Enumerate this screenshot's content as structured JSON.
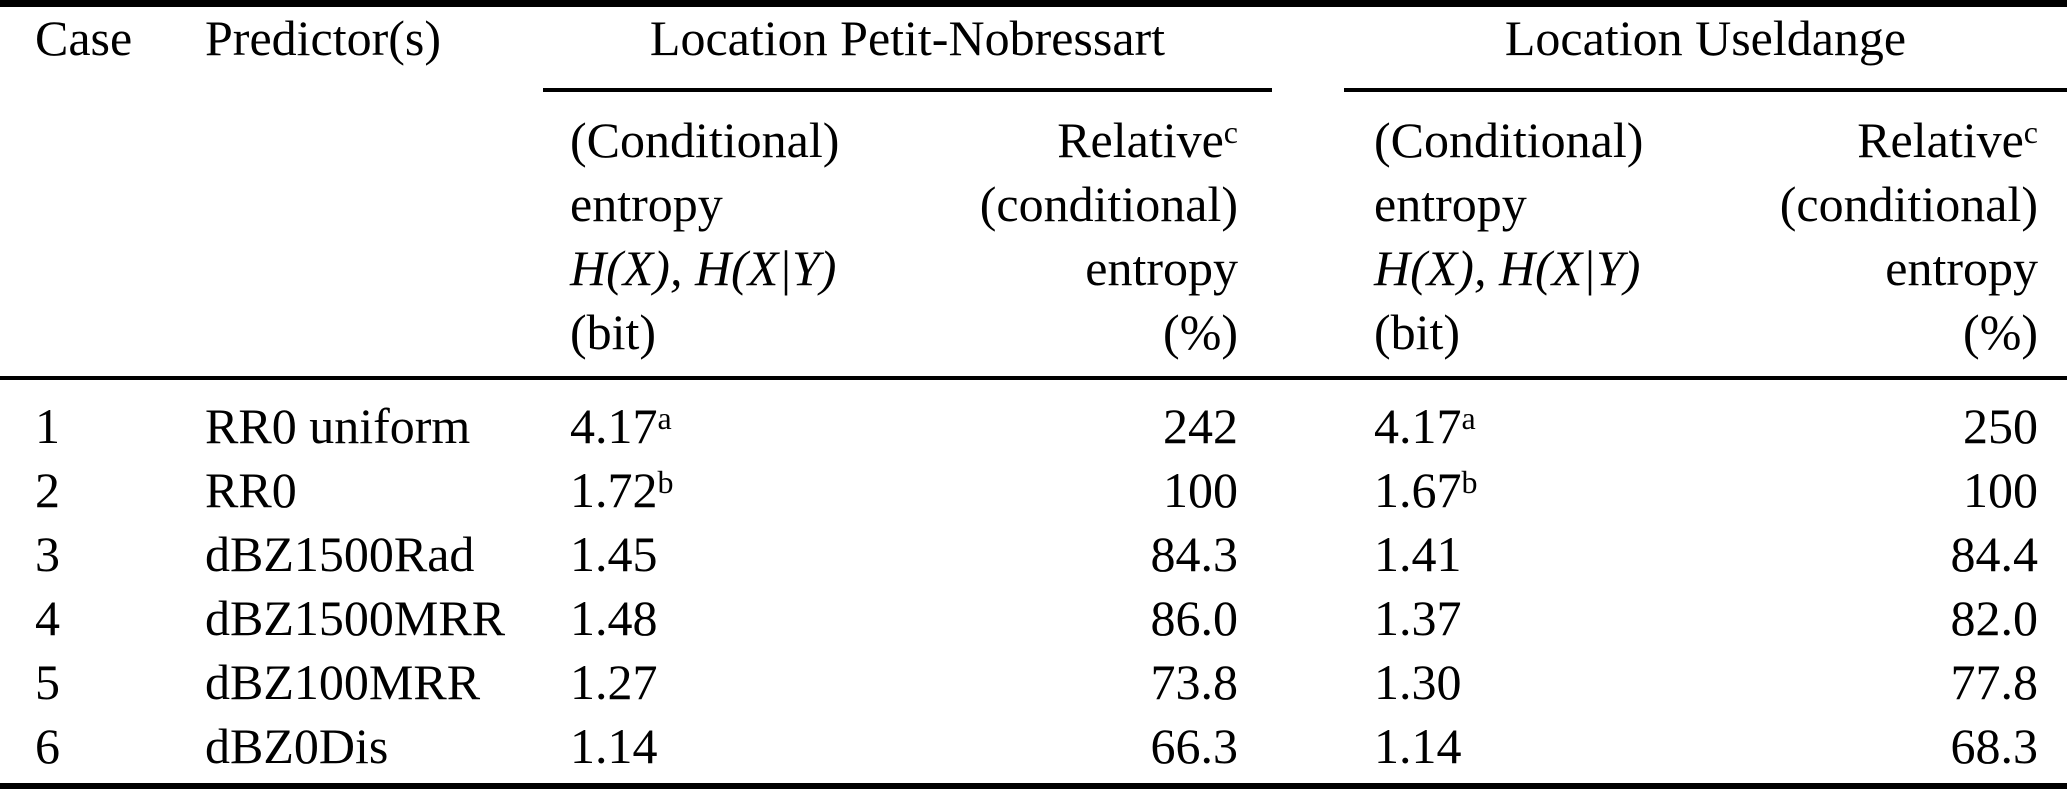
{
  "table": {
    "header": {
      "case_label": "Case",
      "predictors_label": "Predictor(s)",
      "group_petit_nobressart": "Location Petit-Nobressart",
      "group_useldange": "Location Useldange"
    },
    "subheader": {
      "entropy_lines": [
        "(Conditional)",
        "entropy",
        "H(X), H(X|Y)",
        "(bit)"
      ],
      "relative_base": "Relative",
      "relative_sup": "c",
      "relative_lines": [
        "(conditional)",
        "entropy",
        "(%)"
      ]
    },
    "rows": [
      {
        "case": "1",
        "predictor": "RR0 uniform",
        "pn_entropy": "4.17",
        "pn_entropy_sup": "a",
        "pn_relative": "242",
        "u_entropy": "4.17",
        "u_entropy_sup": "a",
        "u_relative": "250"
      },
      {
        "case": "2",
        "predictor": "RR0",
        "pn_entropy": "1.72",
        "pn_entropy_sup": "b",
        "pn_relative": "100",
        "u_entropy": "1.67",
        "u_entropy_sup": "b",
        "u_relative": "100"
      },
      {
        "case": "3",
        "predictor": "dBZ1500Rad",
        "pn_entropy": "1.45",
        "pn_relative": "84.3",
        "u_entropy": "1.41",
        "u_relative": "84.4"
      },
      {
        "case": "4",
        "predictor": "dBZ1500MRR",
        "pn_entropy": "1.48",
        "pn_relative": "86.0",
        "u_entropy": "1.37",
        "u_relative": "82.0"
      },
      {
        "case": "5",
        "predictor": "dBZ100MRR",
        "pn_entropy": "1.27",
        "pn_relative": "73.8",
        "u_entropy": "1.30",
        "u_relative": "77.8"
      },
      {
        "case": "6",
        "predictor": "dBZ0Dis",
        "pn_entropy": "1.14",
        "pn_relative": "66.3",
        "u_entropy": "1.14",
        "u_relative": "68.3"
      }
    ]
  }
}
